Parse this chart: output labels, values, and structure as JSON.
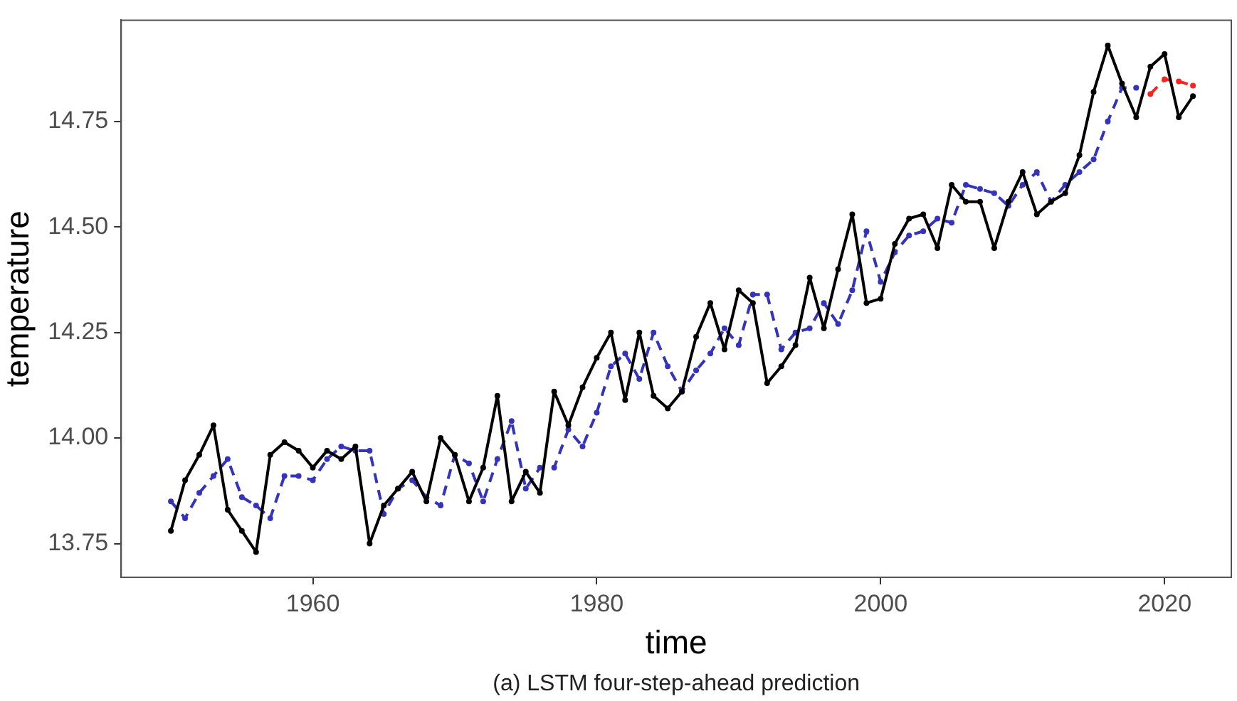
{
  "chart_data": {
    "type": "line",
    "xlabel": "time",
    "ylabel": "temperature",
    "annotations": [
      "(a) LSTM four-step-ahead prediction"
    ],
    "x": [
      1950,
      1951,
      1952,
      1953,
      1954,
      1955,
      1956,
      1957,
      1958,
      1959,
      1960,
      1961,
      1962,
      1963,
      1964,
      1965,
      1966,
      1967,
      1968,
      1969,
      1970,
      1971,
      1972,
      1973,
      1974,
      1975,
      1976,
      1977,
      1978,
      1979,
      1980,
      1981,
      1982,
      1983,
      1984,
      1985,
      1986,
      1987,
      1988,
      1989,
      1990,
      1991,
      1992,
      1993,
      1994,
      1995,
      1996,
      1997,
      1998,
      1999,
      2000,
      2001,
      2002,
      2003,
      2004,
      2005,
      2006,
      2007,
      2008,
      2009,
      2010,
      2011,
      2012,
      2013,
      2014,
      2015,
      2016,
      2017,
      2018,
      2019,
      2020,
      2021,
      2022
    ],
    "series": [
      {
        "color": "#000000",
        "line_style": "solid",
        "values": [
          13.78,
          13.9,
          13.96,
          14.03,
          13.83,
          13.78,
          13.73,
          13.96,
          13.99,
          13.97,
          13.93,
          13.97,
          13.95,
          13.98,
          13.75,
          13.84,
          13.88,
          13.92,
          13.85,
          14.0,
          13.96,
          13.85,
          13.93,
          14.1,
          13.85,
          13.92,
          13.87,
          14.11,
          14.03,
          14.12,
          14.19,
          14.25,
          14.09,
          14.25,
          14.1,
          14.07,
          14.11,
          14.24,
          14.32,
          14.21,
          14.35,
          14.32,
          14.13,
          14.17,
          14.22,
          14.38,
          14.26,
          14.4,
          14.53,
          14.32,
          14.33,
          14.46,
          14.52,
          14.53,
          14.45,
          14.6,
          14.56,
          14.56,
          14.45,
          14.56,
          14.63,
          14.53,
          14.56,
          14.58,
          14.67,
          14.82,
          14.93,
          14.84,
          14.76,
          14.88,
          14.91,
          14.76,
          14.81
        ]
      },
      {
        "color": "#3333bb",
        "line_style": "dashed",
        "values": [
          13.85,
          13.81,
          13.87,
          13.91,
          13.95,
          13.86,
          13.84,
          13.81,
          13.91,
          13.91,
          13.9,
          13.95,
          13.98,
          13.97,
          13.97,
          13.82,
          13.88,
          13.9,
          13.86,
          13.84,
          13.96,
          13.94,
          13.85,
          13.95,
          14.04,
          13.88,
          13.93,
          13.93,
          14.02,
          13.98,
          14.06,
          14.17,
          14.2,
          14.14,
          14.25,
          14.17,
          14.11,
          14.16,
          14.2,
          14.26,
          14.22,
          14.34,
          14.34,
          14.21,
          14.25,
          14.26,
          14.32,
          14.27,
          14.35,
          14.49,
          14.37,
          14.44,
          14.48,
          14.49,
          14.52,
          14.51,
          14.6,
          14.59,
          14.58,
          14.55,
          14.6,
          14.63,
          14.56,
          14.6,
          14.63,
          14.66,
          14.75,
          14.83,
          14.83,
          null,
          null,
          null,
          null
        ]
      },
      {
        "color": "#ff2020",
        "line_style": "dashed",
        "values": [
          null,
          null,
          null,
          null,
          null,
          null,
          null,
          null,
          null,
          null,
          null,
          null,
          null,
          null,
          null,
          null,
          null,
          null,
          null,
          null,
          null,
          null,
          null,
          null,
          null,
          null,
          null,
          null,
          null,
          null,
          null,
          null,
          null,
          null,
          null,
          null,
          null,
          null,
          null,
          null,
          null,
          null,
          null,
          null,
          null,
          null,
          null,
          null,
          null,
          null,
          null,
          null,
          null,
          null,
          null,
          null,
          null,
          null,
          null,
          null,
          null,
          null,
          null,
          null,
          null,
          null,
          null,
          null,
          null,
          14.815,
          14.85,
          14.845,
          14.835
        ]
      }
    ],
    "xlim": [
      1946.5,
      2024.7
    ],
    "xticks": [
      1960,
      1980,
      2000,
      2020
    ],
    "ylim": [
      13.67,
      14.99
    ],
    "yticks": [
      13.75,
      {
        "value": 14,
        "label": "14.00"
      },
      14.25,
      {
        "value": 14.5,
        "label": "14.50"
      },
      14.75
    ],
    "grid": false,
    "legend": false,
    "marker": "circle"
  }
}
